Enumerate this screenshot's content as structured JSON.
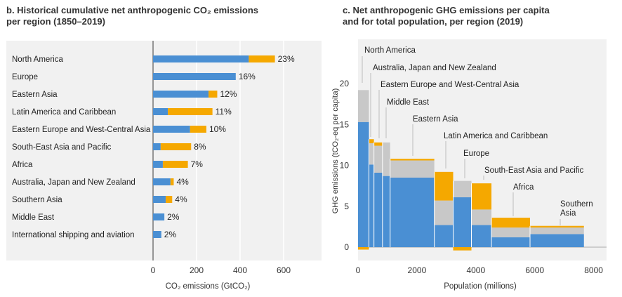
{
  "panel_b": {
    "title_line1": "b. Historical cumulative net anthropogenic CO₂ emissions",
    "title_line2": "per region (1850–2019)"
  },
  "panel_c": {
    "title_line1": "c. Net anthropogenic GHG emissions per capita",
    "title_line2": "and for total population, per region (2019)"
  },
  "chart_data": [
    {
      "type": "bar",
      "orientation": "horizontal",
      "stacked": true,
      "title": "b. Historical cumulative net anthropogenic CO₂ emissions per region (1850–2019)",
      "xlabel": "CO₂ emissions (GtCO₂)",
      "ylabel": "",
      "xlim": [
        0,
        720
      ],
      "xticks": [
        0,
        200,
        400,
        600
      ],
      "grid": "vertical",
      "colors": {
        "blue": "#4a8fd3",
        "orange": "#f5a800"
      },
      "categories": [
        "North America",
        "Europe",
        "Eastern Asia",
        "Latin America and Caribbean",
        "Eastern Europe and West-Central Asia",
        "South-East Asia and Pacific",
        "Africa",
        "Australia, Japan and New Zealand",
        "Southern Asia",
        "Middle East",
        "International shipping and aviation"
      ],
      "series": [
        {
          "values": [
            440,
            380,
            255,
            68,
            170,
            35,
            45,
            80,
            58,
            52,
            38
          ]
        },
        {
          "values": [
            120,
            0,
            40,
            205,
            75,
            140,
            115,
            15,
            30,
            0,
            0
          ]
        }
      ],
      "labels": [
        "23%",
        "16%",
        "12%",
        "11%",
        "10%",
        "8%",
        "7%",
        "4%",
        "4%",
        "2%",
        "2%"
      ]
    },
    {
      "type": "bar",
      "variant": "variable-width",
      "title": "c. Net anthropogenic GHG emissions per capita and for total population, per region (2019)",
      "xlabel": "Population (millions)",
      "ylabel": "GHG emissions (tCO₂-eq per capita)",
      "xlim": [
        0,
        8200
      ],
      "ylim": [
        -1,
        22.5
      ],
      "xticks": [
        0,
        2000,
        4000,
        6000,
        8000
      ],
      "yticks": [
        0,
        5,
        10,
        15,
        20
      ],
      "colors": {
        "blue": "#4a8fd3",
        "gray": "#c8c8c8",
        "orange": "#f5a800"
      },
      "regions": [
        {
          "label": "North America",
          "x0": 0,
          "x1": 370,
          "blue": 15.3,
          "gray_top": 19.2,
          "orange_top": 19.2,
          "orange_bottom": -0.3
        },
        {
          "label": "Australia, Japan and New Zealand",
          "x0": 370,
          "x1": 540,
          "blue": 10.1,
          "gray_top": 12.7,
          "orange_top": 13.2,
          "orange_bottom": 0
        },
        {
          "label": "Eastern Europe and West-Central Asia",
          "x0": 540,
          "x1": 830,
          "blue": 9.1,
          "gray_top": 12.4,
          "orange_top": 12.8,
          "orange_bottom": 0
        },
        {
          "label": "Middle East",
          "x0": 830,
          "x1": 1090,
          "blue": 8.7,
          "gray_top": 12.8,
          "orange_top": 12.8,
          "orange_bottom": 0
        },
        {
          "label": "Eastern Asia",
          "x0": 1090,
          "x1": 2590,
          "blue": 8.5,
          "gray_top": 10.6,
          "orange_top": 10.8,
          "orange_bottom": 0
        },
        {
          "label": "Latin America and Caribbean",
          "x0": 2590,
          "x1": 3230,
          "blue": 2.7,
          "gray_top": 5.7,
          "orange_top": 9.2,
          "orange_bottom": 0
        },
        {
          "label": "Europe",
          "x0": 3230,
          "x1": 3850,
          "blue": 6.1,
          "gray_top": 8.1,
          "orange_top": 8.1,
          "orange_bottom": -0.4
        },
        {
          "label": "South-East Asia and Pacific",
          "x0": 3850,
          "x1": 4530,
          "blue": 2.7,
          "gray_top": 4.6,
          "orange_top": 7.8,
          "orange_bottom": 0
        },
        {
          "label": "Africa",
          "x0": 4530,
          "x1": 5840,
          "blue": 1.2,
          "gray_top": 2.4,
          "orange_top": 3.6,
          "orange_bottom": 0
        },
        {
          "label": "Southern Asia",
          "x0": 5840,
          "x1": 7670,
          "blue": 1.6,
          "gray_top": 2.4,
          "orange_top": 2.6,
          "orange_bottom": 0
        },
        {
          "label": "",
          "x0": 7670,
          "x1": 8200,
          "blue": 0,
          "gray_top": 0,
          "orange_top": 0,
          "orange_bottom": 0
        }
      ]
    }
  ]
}
